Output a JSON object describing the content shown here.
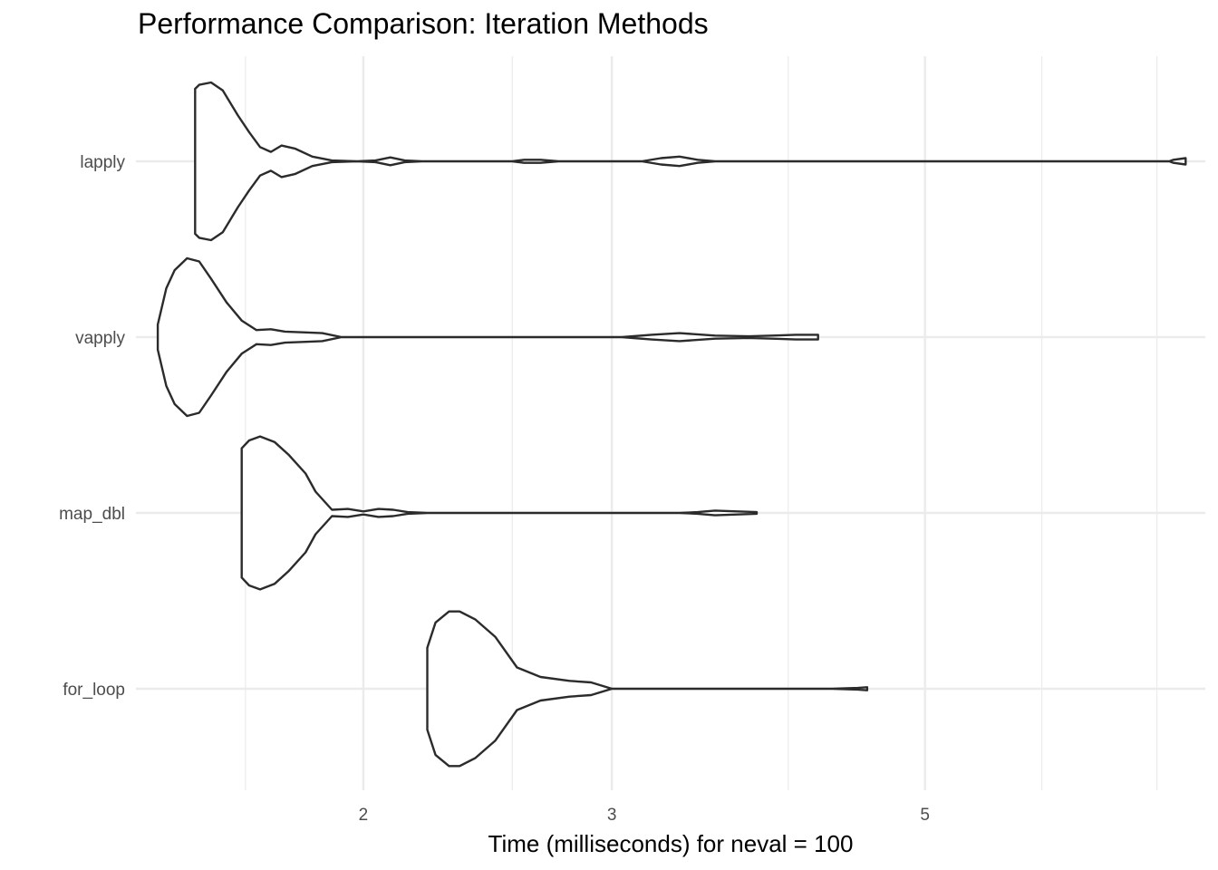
{
  "chart_data": {
    "type": "violin",
    "title": "Performance Comparison: Iteration Methods",
    "xlabel": "Time (milliseconds) for neval = 100",
    "ylabel": "",
    "x_scale": "log10",
    "xlim": [
      1.38,
      7.9
    ],
    "x_major_ticks": [
      2,
      3,
      5
    ],
    "x_tick_labels": [
      "2",
      "3",
      "5"
    ],
    "x_minor_gridlines": [
      1.65,
      2.55,
      4.0,
      6.05,
      7.3
    ],
    "categories": [
      "lapply",
      "vapply",
      "map_dbl",
      "for_loop"
    ],
    "grid": true,
    "legend": "none",
    "line_color": "#2b2b2b",
    "grid_color": "#ebebeb",
    "series": [
      {
        "category": "lapply",
        "range": [
          1.52,
          7.65
        ],
        "density": [
          [
            1.52,
            0.53
          ],
          [
            1.52,
            0.92
          ],
          [
            1.53,
            0.97
          ],
          [
            1.56,
            1.0
          ],
          [
            1.59,
            0.9
          ],
          [
            1.63,
            0.58
          ],
          [
            1.66,
            0.37
          ],
          [
            1.69,
            0.18
          ],
          [
            1.72,
            0.12
          ],
          [
            1.75,
            0.2
          ],
          [
            1.79,
            0.16
          ],
          [
            1.84,
            0.06
          ],
          [
            1.9,
            0.01
          ],
          [
            1.98,
            0.0
          ],
          [
            2.04,
            0.01
          ],
          [
            2.09,
            0.05
          ],
          [
            2.14,
            0.01
          ],
          [
            2.2,
            0.0
          ],
          [
            2.55,
            0.0
          ],
          [
            2.6,
            0.02
          ],
          [
            2.67,
            0.02
          ],
          [
            2.75,
            0.0
          ],
          [
            3.15,
            0.0
          ],
          [
            3.25,
            0.04
          ],
          [
            3.35,
            0.06
          ],
          [
            3.45,
            0.02
          ],
          [
            3.55,
            0.0
          ],
          [
            7.45,
            0.0
          ],
          [
            7.5,
            0.02
          ],
          [
            7.65,
            0.04
          ]
        ]
      },
      {
        "category": "vapply",
        "range": [
          1.43,
          4.2
        ],
        "density": [
          [
            1.43,
            0.16
          ],
          [
            1.45,
            0.62
          ],
          [
            1.47,
            0.85
          ],
          [
            1.5,
            1.0
          ],
          [
            1.53,
            0.96
          ],
          [
            1.56,
            0.74
          ],
          [
            1.6,
            0.44
          ],
          [
            1.64,
            0.21
          ],
          [
            1.68,
            0.09
          ],
          [
            1.72,
            0.1
          ],
          [
            1.76,
            0.07
          ],
          [
            1.82,
            0.06
          ],
          [
            1.87,
            0.05
          ],
          [
            1.93,
            0.0
          ],
          [
            3.05,
            0.0
          ],
          [
            3.2,
            0.03
          ],
          [
            3.35,
            0.05
          ],
          [
            3.55,
            0.02
          ],
          [
            3.75,
            0.01
          ],
          [
            3.9,
            0.02
          ],
          [
            4.05,
            0.03
          ],
          [
            4.2,
            0.03
          ]
        ]
      },
      {
        "category": "map_dbl",
        "range": [
          1.64,
          3.8
        ],
        "density": [
          [
            1.64,
            0.0
          ],
          [
            1.64,
            0.82
          ],
          [
            1.66,
            0.92
          ],
          [
            1.69,
            0.97
          ],
          [
            1.73,
            0.9
          ],
          [
            1.77,
            0.74
          ],
          [
            1.82,
            0.5
          ],
          [
            1.85,
            0.27
          ],
          [
            1.9,
            0.04
          ],
          [
            1.95,
            0.05
          ],
          [
            2.0,
            0.02
          ],
          [
            2.05,
            0.05
          ],
          [
            2.1,
            0.04
          ],
          [
            2.15,
            0.01
          ],
          [
            2.22,
            0.0
          ],
          [
            3.35,
            0.0
          ],
          [
            3.45,
            0.01
          ],
          [
            3.55,
            0.03
          ],
          [
            3.68,
            0.02
          ],
          [
            3.8,
            0.01
          ]
        ]
      },
      {
        "category": "for_loop",
        "range": [
          2.22,
          4.55
        ],
        "density": [
          [
            2.22,
            0.0
          ],
          [
            2.22,
            0.52
          ],
          [
            2.25,
            0.84
          ],
          [
            2.3,
            0.98
          ],
          [
            2.34,
            0.98
          ],
          [
            2.4,
            0.88
          ],
          [
            2.48,
            0.66
          ],
          [
            2.57,
            0.27
          ],
          [
            2.67,
            0.15
          ],
          [
            2.8,
            0.1
          ],
          [
            2.9,
            0.08
          ],
          [
            3.0,
            0.0
          ],
          [
            4.3,
            0.0
          ],
          [
            4.48,
            0.01
          ],
          [
            4.55,
            0.02
          ]
        ]
      }
    ]
  }
}
